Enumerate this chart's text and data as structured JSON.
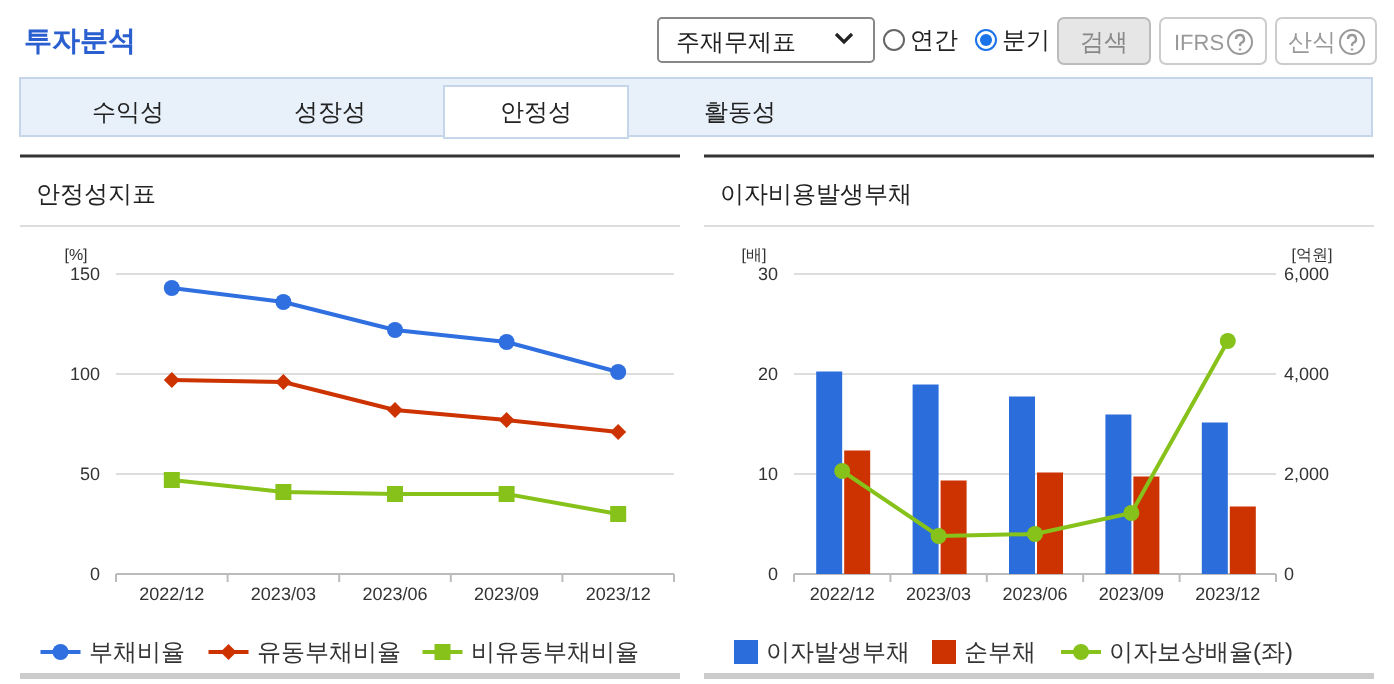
{
  "chart_data": [
    {
      "type": "other",
      "title": "투자분석",
      "annotations": [
        "주재무제표",
        "연간",
        "분기",
        "검색",
        "IFRS",
        "산식",
        "수익성",
        "성장성",
        "안정성",
        "활동성"
      ]
    },
    {
      "type": "line",
      "title": "안정성지표",
      "ylabel": "[%]",
      "categories": [
        "2022/12",
        "2023/03",
        "2023/06",
        "2023/09",
        "2023/12"
      ],
      "ylim": [
        0,
        150
      ],
      "yticks": [
        0,
        50,
        100,
        150
      ],
      "grid": "y",
      "legend": "bottom",
      "series": [
        {
          "name": "부채비율",
          "color": "#2f6fe0",
          "marker": "circle",
          "values": [
            143,
            136,
            122,
            116,
            101
          ]
        },
        {
          "name": "유동부채비율",
          "color": "#cc3300",
          "marker": "diamond",
          "values": [
            97,
            96,
            82,
            77,
            71
          ]
        },
        {
          "name": "비유동부채비율",
          "color": "#86c21a",
          "marker": "square",
          "values": [
            47,
            41,
            40,
            40,
            30
          ]
        }
      ]
    },
    {
      "type": "bar",
      "title": "이자비용발생부채",
      "ylabel": "[배]",
      "y2label": "[억원]",
      "categories": [
        "2022/12",
        "2023/03",
        "2023/06",
        "2023/09",
        "2023/12"
      ],
      "ylim": [
        0,
        30
      ],
      "yticks": [
        0,
        10,
        20,
        30
      ],
      "y2lim": [
        0,
        6000
      ],
      "y2ticks": [
        0,
        {
          "value": 2000,
          "label": "2,000"
        },
        {
          "value": 4000,
          "label": "4,000"
        },
        {
          "value": 6000,
          "label": "6,000"
        }
      ],
      "grid": "y",
      "legend": "bottom",
      "series": [
        {
          "name": "이자발생부채",
          "color": "#2a6ddb",
          "axis": "y2",
          "values": [
            4050,
            3790,
            3550,
            3190,
            3030
          ]
        },
        {
          "name": "순부채",
          "color": "#cc3300",
          "axis": "y2",
          "values": [
            2470,
            1870,
            2030,
            1950,
            1350
          ]
        },
        {
          "name": "이자보상배율(좌)",
          "type": "line",
          "marker": "circle",
          "color": "#86c21a",
          "values": [
            10.3,
            3.8,
            4.0,
            6.1,
            23.3
          ]
        }
      ]
    }
  ]
}
